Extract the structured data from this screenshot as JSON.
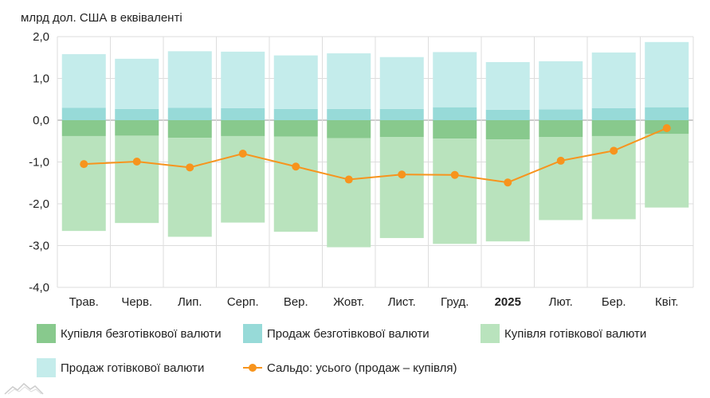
{
  "chart_data": {
    "type": "bar",
    "stacked": true,
    "unit_label": "млрд дол. США в еквіваленті",
    "categories": [
      "Трав.",
      "Черв.",
      "Лип.",
      "Серп.",
      "Вер.",
      "Жовт.",
      "Лист.",
      "Груд.",
      "2025",
      "Лют.",
      "Бер.",
      "Квіт."
    ],
    "bold_categories": [
      "2025"
    ],
    "ylim": [
      -4.0,
      2.0
    ],
    "yticks": [
      2.0,
      1.0,
      0.0,
      -1.0,
      -2.0,
      -3.0,
      -4.0
    ],
    "ytick_labels": [
      "2,0",
      "1,0",
      "0,0",
      "-1,0",
      "-2,0",
      "-3,0",
      "-4,0"
    ],
    "grid": true,
    "legend_position": "bottom",
    "series": [
      {
        "name": "Купівля безготівкової валюти",
        "kind": "bar",
        "color": "#88c98d",
        "values": [
          -0.38,
          -0.37,
          -0.42,
          -0.38,
          -0.39,
          -0.43,
          -0.4,
          -0.44,
          -0.46,
          -0.4,
          -0.38,
          -0.33
        ]
      },
      {
        "name": "Продаж безготівкової валюти",
        "kind": "bar",
        "color": "#97dad8",
        "values": [
          0.3,
          0.27,
          0.3,
          0.29,
          0.27,
          0.27,
          0.27,
          0.31,
          0.25,
          0.26,
          0.29,
          0.31
        ]
      },
      {
        "name": "Купівля готівкової валюти",
        "kind": "bar",
        "color": "#b9e3bd",
        "values": [
          -2.27,
          -2.09,
          -2.37,
          -2.07,
          -2.28,
          -2.61,
          -2.42,
          -2.52,
          -2.44,
          -1.99,
          -1.99,
          -1.76
        ]
      },
      {
        "name": "Продаж готівкової валюти",
        "kind": "bar",
        "color": "#c4eceb",
        "values": [
          1.28,
          1.2,
          1.35,
          1.35,
          1.28,
          1.33,
          1.24,
          1.32,
          1.14,
          1.15,
          1.33,
          1.56
        ]
      },
      {
        "name": "Сальдо: усього (продаж – купівля)",
        "kind": "line",
        "color": "#f7941d",
        "values": [
          -1.05,
          -0.99,
          -1.13,
          -0.8,
          -1.11,
          -1.42,
          -1.3,
          -1.31,
          -1.49,
          -0.97,
          -0.73,
          -0.19
        ]
      }
    ]
  }
}
